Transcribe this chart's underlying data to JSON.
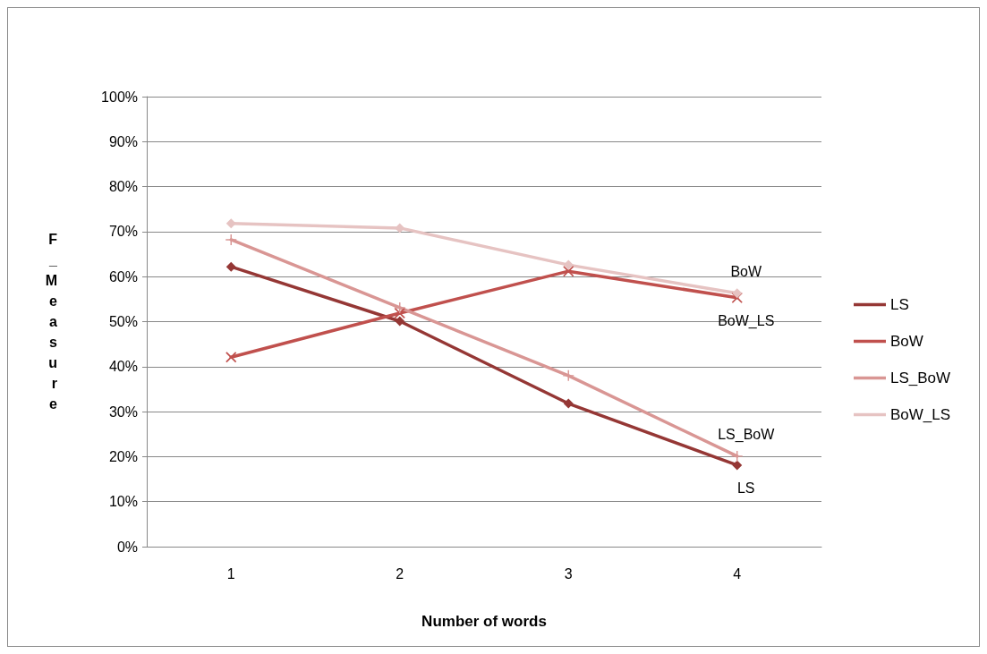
{
  "chart_data": {
    "type": "line",
    "xlabel": "Number of words",
    "ylabel": "F_Measure",
    "categories": [
      "1",
      "2",
      "3",
      "4"
    ],
    "ylim": [
      0,
      100
    ],
    "yticks": [
      {
        "value": 0,
        "label": "0%"
      },
      {
        "value": 10,
        "label": "10%"
      },
      {
        "value": 20,
        "label": "20%"
      },
      {
        "value": 30,
        "label": "30%"
      },
      {
        "value": 40,
        "label": "40%"
      },
      {
        "value": 50,
        "label": "50%"
      },
      {
        "value": 60,
        "label": "60%"
      },
      {
        "value": 70,
        "label": "70%"
      },
      {
        "value": 80,
        "label": "80%"
      },
      {
        "value": 90,
        "label": "90%"
      },
      {
        "value": 100,
        "label": "100%"
      }
    ],
    "grid": "y",
    "legend": "right",
    "series": [
      {
        "name": "LS",
        "color": "#953735",
        "marker": "diamond",
        "values": [
          62.2,
          50.1,
          31.8,
          18.1
        ]
      },
      {
        "name": "BoW",
        "color": "#c0504d",
        "marker": "cross",
        "values": [
          42.1,
          51.9,
          61.2,
          55.3
        ]
      },
      {
        "name": "LS_BoW",
        "color": "#d99694",
        "marker": "plus",
        "values": [
          68.2,
          53.1,
          38.0,
          20.1
        ]
      },
      {
        "name": "BoW_LS",
        "color": "#e6c3c2",
        "marker": "diamond",
        "values": [
          71.8,
          70.8,
          62.6,
          56.3
        ]
      }
    ],
    "annotations": [
      {
        "text": "BoW",
        "x": "4",
        "y": 56.3
      },
      {
        "text": "BoW_LS",
        "x": "4",
        "y": 55.3
      },
      {
        "text": "LS_BoW",
        "x": "4",
        "y": 20.1
      },
      {
        "text": "LS",
        "x": "4",
        "y": 18.1
      }
    ]
  }
}
